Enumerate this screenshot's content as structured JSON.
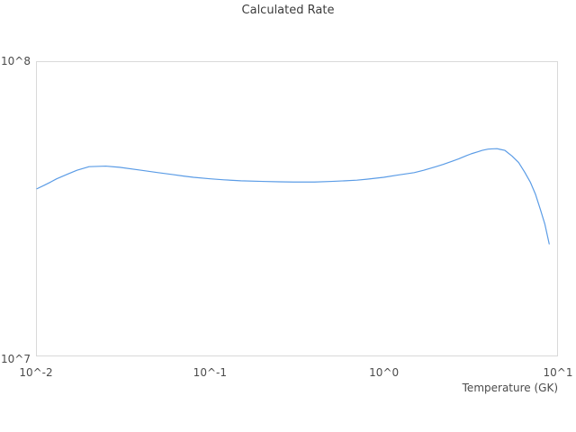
{
  "page": {
    "background": "#ffffff"
  },
  "chart_data": {
    "type": "line",
    "title": "Calculated Rate",
    "xlabel": "Temperature (GK)",
    "ylabel": "",
    "x_scale": "log",
    "y_scale": "log",
    "xlim": [
      0.01,
      10
    ],
    "ylim": [
      10000000.0,
      100000000.0
    ],
    "grid": false,
    "legend": "none",
    "frame_color": "#d9d9d9",
    "title_color": "#3c3c3c",
    "label_color": "#4b4b4b",
    "x_ticks": [
      0.01,
      0.1,
      1,
      10
    ],
    "x_tick_labels": [
      "10^-2",
      "10^-1",
      "10^0",
      "10^1"
    ],
    "y_ticks": [
      10000000.0,
      100000000.0
    ],
    "y_tick_labels": [
      "10^7",
      "10^8"
    ],
    "series": [
      {
        "name": "Calculated Rate",
        "color": "#5b9ce6",
        "x": [
          0.01,
          0.011,
          0.012,
          0.013,
          0.015,
          0.017,
          0.02,
          0.025,
          0.03,
          0.04,
          0.05,
          0.06,
          0.07,
          0.08,
          0.1,
          0.12,
          0.15,
          0.2,
          0.25,
          0.3,
          0.4,
          0.5,
          0.6,
          0.7,
          0.8,
          1.0,
          1.2,
          1.5,
          1.7,
          2.0,
          2.2,
          2.5,
          2.7,
          3.0,
          3.2,
          3.5,
          3.7,
          4.0,
          4.2,
          4.5,
          4.7,
          5.0,
          5.5,
          6.0,
          6.5,
          7.0,
          7.5,
          8.0,
          8.5,
          9.0
        ],
        "y": [
          37000000.0,
          38000000.0,
          39000000.0,
          40000000.0,
          41500000.0,
          42800000.0,
          44000000.0,
          44200000.0,
          43800000.0,
          42800000.0,
          42000000.0,
          41400000.0,
          40900000.0,
          40500000.0,
          40000000.0,
          39700000.0,
          39400000.0,
          39200000.0,
          39100000.0,
          39000000.0,
          39000000.0,
          39200000.0,
          39400000.0,
          39600000.0,
          39900000.0,
          40500000.0,
          41200000.0,
          42000000.0,
          42800000.0,
          44000000.0,
          44800000.0,
          46000000.0,
          46800000.0,
          48000000.0,
          48700000.0,
          49500000.0,
          50000000.0,
          50500000.0,
          50600000.0,
          50700000.0,
          50400000.0,
          50000000.0,
          47800000.0,
          45500000.0,
          42200000.0,
          39000000.0,
          35500000.0,
          31500000.0,
          28000000.0,
          24000000.0
        ]
      }
    ]
  }
}
